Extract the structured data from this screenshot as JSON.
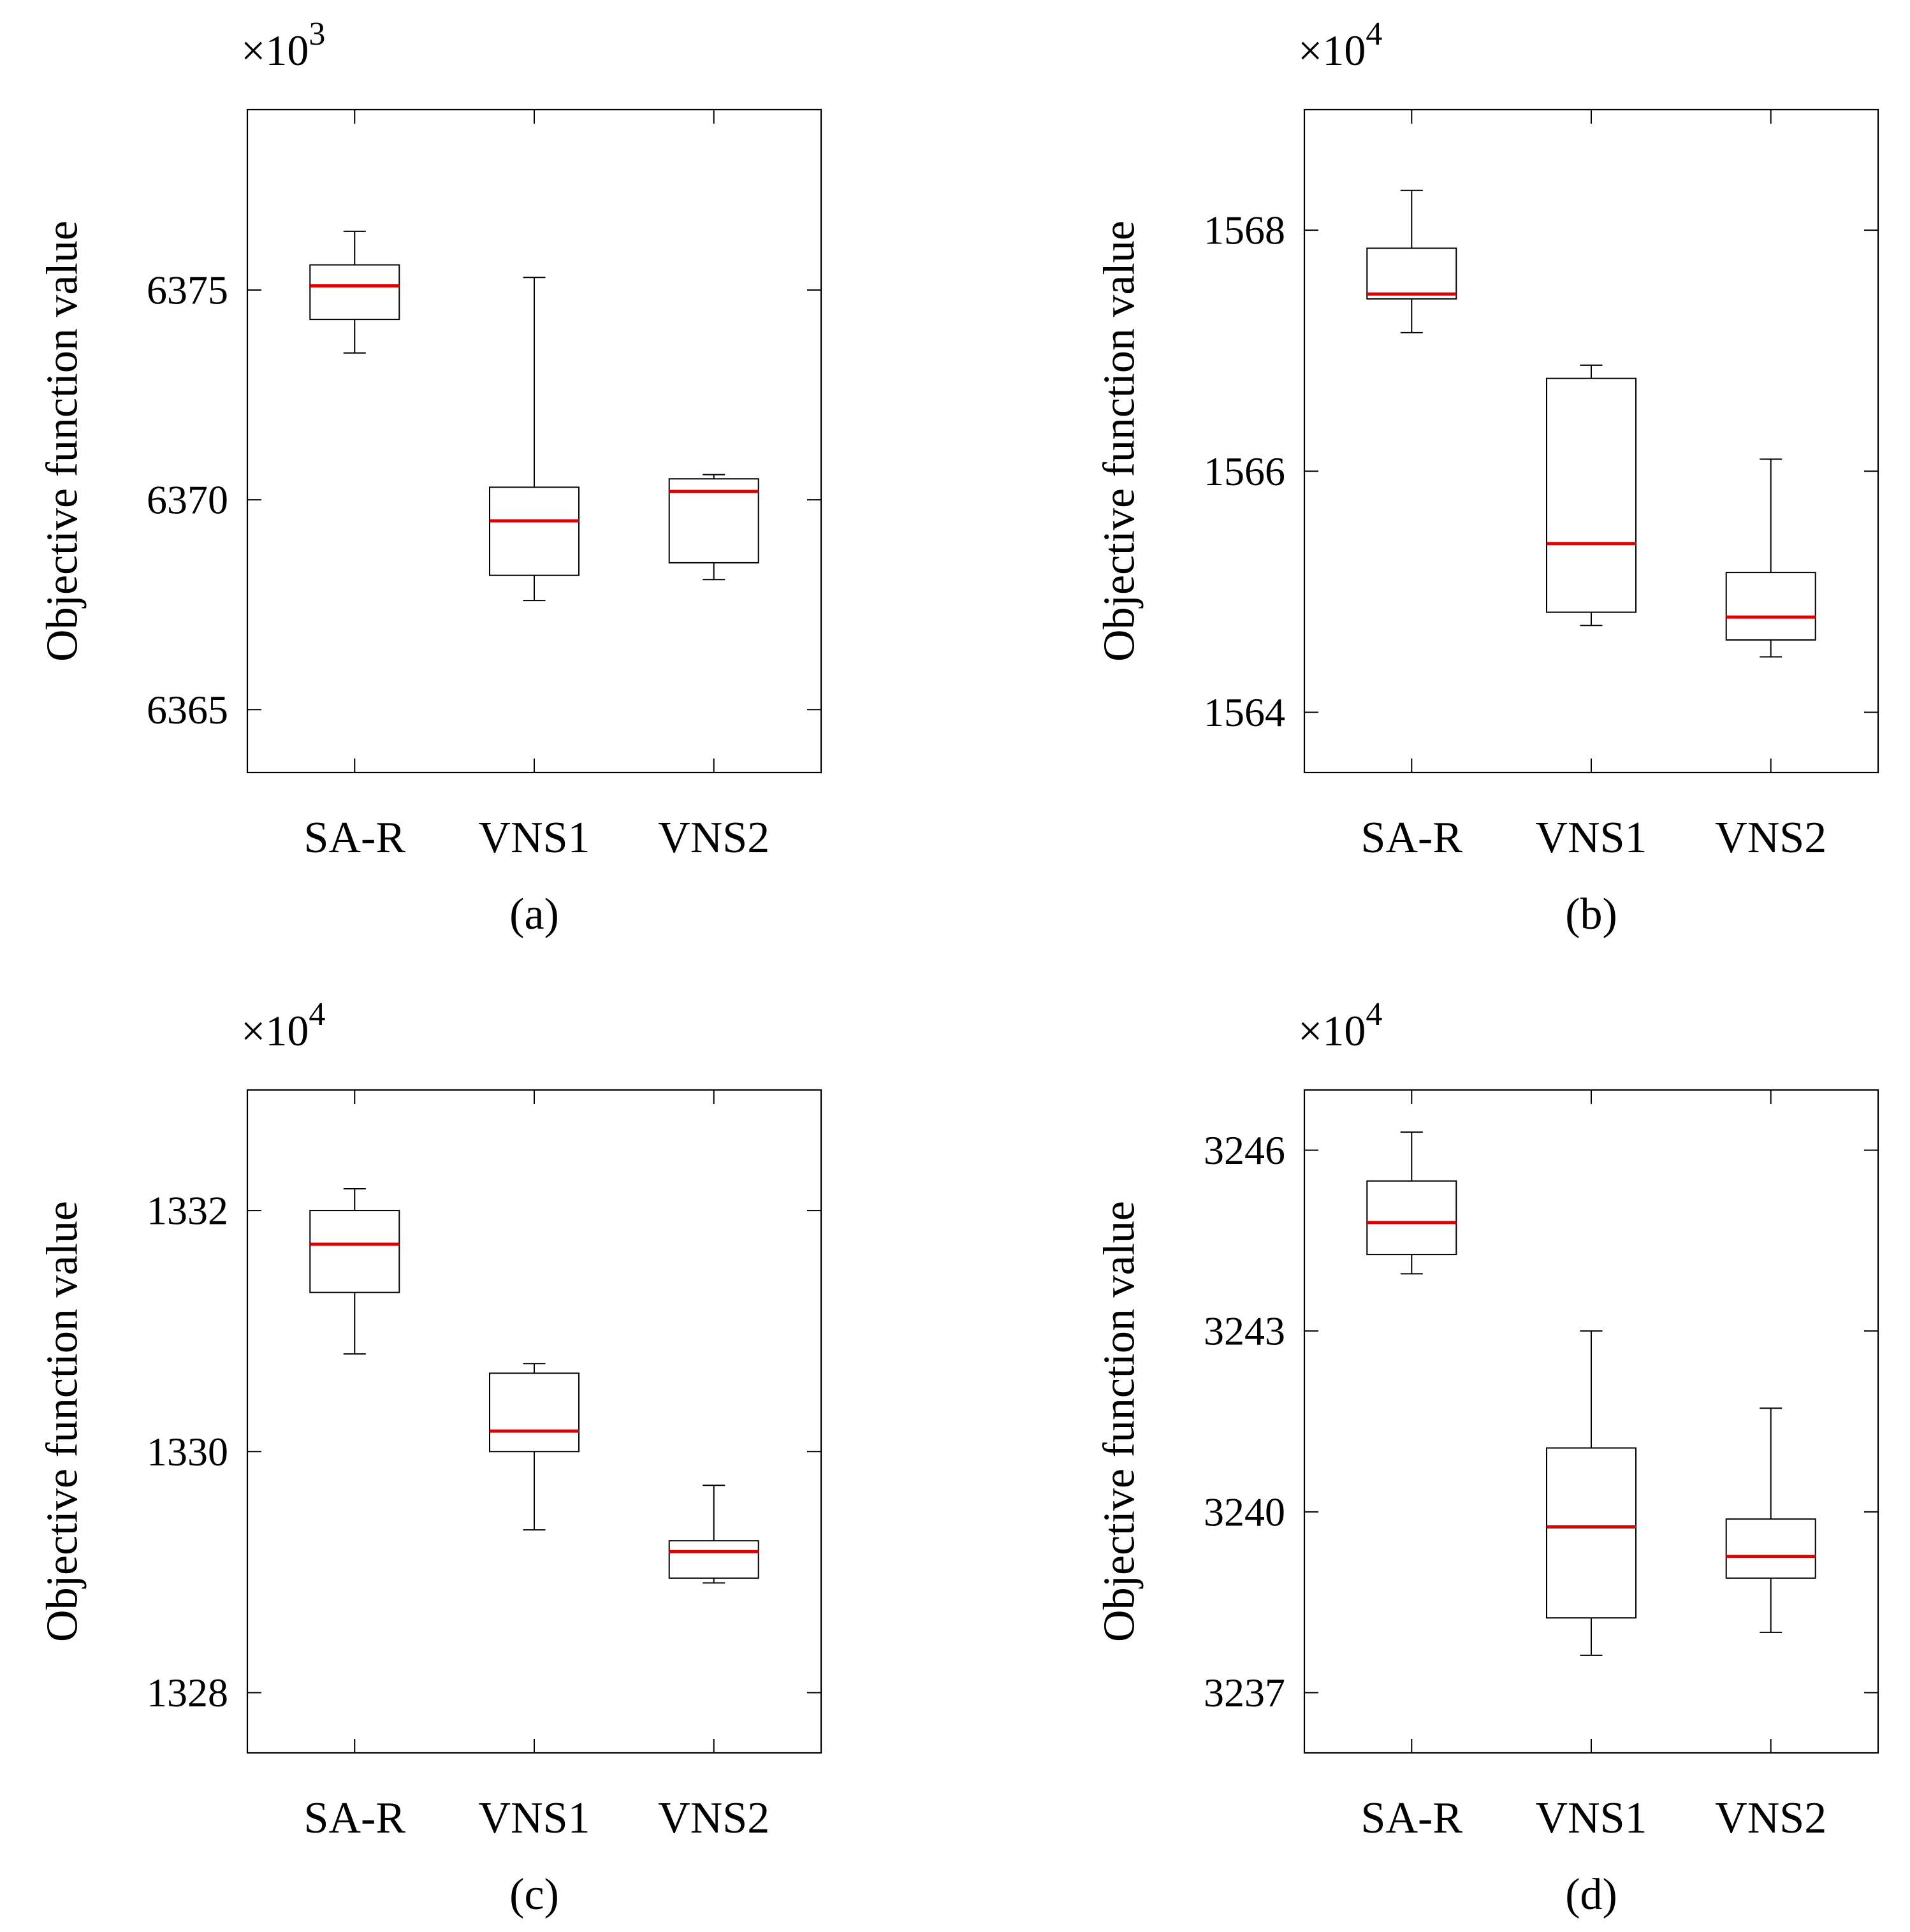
{
  "colors": {
    "median": "#e00000",
    "box": "#000000",
    "background": "#ffffff"
  },
  "chart_data": [
    {
      "type": "box",
      "panel_label": "(a)",
      "ylabel": "Objective function value",
      "multiplier_text": "×10",
      "multiplier_exp": "3",
      "categories": [
        "SA-R",
        "VNS1",
        "VNS2"
      ],
      "ylim": [
        6363.5,
        6379.3
      ],
      "yticks": [
        6365,
        6370,
        6375
      ],
      "ytick_labels": [
        "6365",
        "6370",
        "6375"
      ],
      "boxes": [
        {
          "name": "SA-R",
          "min": 6373.5,
          "q1": 6374.3,
          "median": 6375.1,
          "q3": 6375.6,
          "max": 6376.4
        },
        {
          "name": "VNS1",
          "min": 6367.6,
          "q1": 6368.2,
          "median": 6369.5,
          "q3": 6370.3,
          "max": 6375.3
        },
        {
          "name": "VNS2",
          "min": 6368.1,
          "q1": 6368.5,
          "median": 6370.2,
          "q3": 6370.5,
          "max": 6370.6
        }
      ]
    },
    {
      "type": "box",
      "panel_label": "(b)",
      "ylabel": "Objective function value",
      "multiplier_text": "×10",
      "multiplier_exp": "4",
      "categories": [
        "SA-R",
        "VNS1",
        "VNS2"
      ],
      "ylim": [
        1563.5,
        1569.0
      ],
      "yticks": [
        1564,
        1566,
        1568
      ],
      "ytick_labels": [
        "1564",
        "1566",
        "1568"
      ],
      "boxes": [
        {
          "name": "SA-R",
          "min": 1567.15,
          "q1": 1567.43,
          "median": 1567.47,
          "q3": 1567.85,
          "max": 1568.33
        },
        {
          "name": "VNS1",
          "min": 1564.72,
          "q1": 1564.83,
          "median": 1565.4,
          "q3": 1566.77,
          "max": 1566.88
        },
        {
          "name": "VNS2",
          "min": 1564.46,
          "q1": 1564.6,
          "median": 1564.79,
          "q3": 1565.16,
          "max": 1566.1
        }
      ]
    },
    {
      "type": "box",
      "panel_label": "(c)",
      "ylabel": "Objective function value",
      "multiplier_text": "×10",
      "multiplier_exp": "4",
      "categories": [
        "SA-R",
        "VNS1",
        "VNS2"
      ],
      "ylim": [
        1327.5,
        1333.0
      ],
      "yticks": [
        1328,
        1330,
        1332
      ],
      "ytick_labels": [
        "1328",
        "1330",
        "1332"
      ],
      "boxes": [
        {
          "name": "SA-R",
          "min": 1330.81,
          "q1": 1331.32,
          "median": 1331.72,
          "q3": 1332.0,
          "max": 1332.18
        },
        {
          "name": "VNS1",
          "min": 1329.35,
          "q1": 1330.0,
          "median": 1330.17,
          "q3": 1330.65,
          "max": 1330.73
        },
        {
          "name": "VNS2",
          "min": 1328.91,
          "q1": 1328.95,
          "median": 1329.17,
          "q3": 1329.26,
          "max": 1329.72
        }
      ]
    },
    {
      "type": "box",
      "panel_label": "(d)",
      "ylabel": "Objective function value",
      "multiplier_text": "×10",
      "multiplier_exp": "4",
      "categories": [
        "SA-R",
        "VNS1",
        "VNS2"
      ],
      "ylim": [
        3236.0,
        3247.0
      ],
      "yticks": [
        3237,
        3240,
        3243,
        3246
      ],
      "ytick_labels": [
        "3237",
        "3240",
        "3243",
        "3246"
      ],
      "boxes": [
        {
          "name": "SA-R",
          "min": 3243.95,
          "q1": 3244.27,
          "median": 3244.8,
          "q3": 3245.49,
          "max": 3246.3
        },
        {
          "name": "VNS1",
          "min": 3237.62,
          "q1": 3238.24,
          "median": 3239.75,
          "q3": 3241.06,
          "max": 3243.0
        },
        {
          "name": "VNS2",
          "min": 3238.0,
          "q1": 3238.9,
          "median": 3239.26,
          "q3": 3239.88,
          "max": 3241.72
        }
      ]
    }
  ]
}
